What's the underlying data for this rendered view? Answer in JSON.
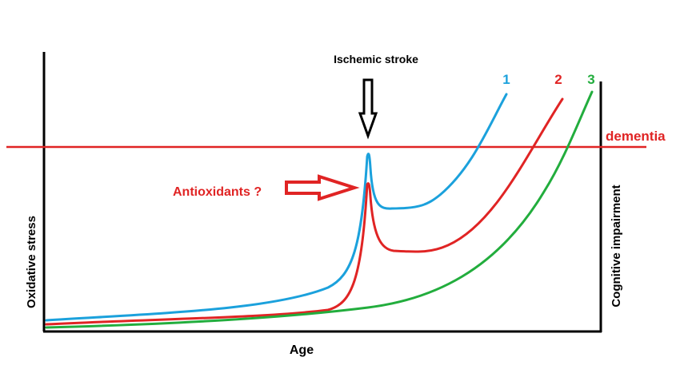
{
  "labels": {
    "event": "Ischemic stroke",
    "threshold": "dementia",
    "intervention": "Antioxidants ?",
    "x_axis": "Age",
    "y_axis_left": "Oxidative stress",
    "y_axis_right": "Cognitive impairment"
  },
  "curves": [
    {
      "name": "1",
      "color": "#1ba1dc"
    },
    {
      "name": "2",
      "color": "#e02424"
    },
    {
      "name": "3",
      "color": "#22ad3d"
    }
  ],
  "colors": {
    "axis": "#000000",
    "threshold_line": "#e02424",
    "intervention_arrow": "#e02424",
    "event_arrow": "#000000"
  },
  "icons": {
    "event": "down-arrow-outline-icon",
    "intervention": "right-arrow-outline-icon"
  }
}
